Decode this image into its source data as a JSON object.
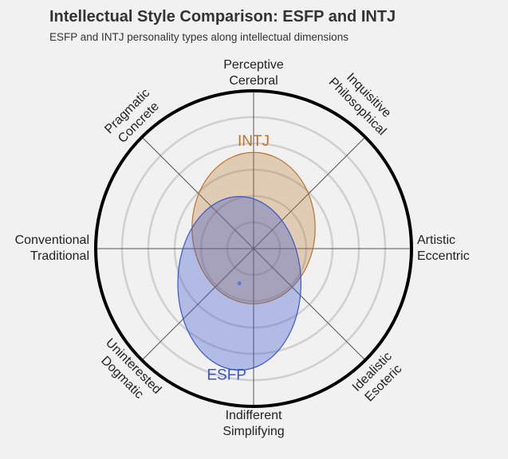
{
  "header": {
    "title": "Intellectual Style Comparison: ESFP and INTJ",
    "subtitle": "ESFP and INTJ personality types along intellectual dimensions"
  },
  "colors": {
    "background": "#f1f1f1",
    "intj": "#b8732a",
    "esfp": "#3a55c9"
  },
  "chart_data": {
    "type": "scatter",
    "grid": true,
    "rings": 5,
    "axes": [
      {
        "name": "vertical",
        "positive": [
          "Perceptive",
          "Cerebral"
        ],
        "negative": [
          "Indifferent",
          "Simplifying"
        ]
      },
      {
        "name": "horizontal",
        "positive": [
          "Artistic",
          "Eccentric"
        ],
        "negative": [
          "Conventional",
          "Traditional"
        ]
      },
      {
        "name": "diagonal-right",
        "positive": [
          "Inquisitive",
          "Philosophical"
        ],
        "negative": [
          "Uninterested",
          "Dogmatic"
        ]
      },
      {
        "name": "diagonal-left",
        "positive": [
          "Pragmatic",
          "Concrete"
        ],
        "negative": [
          "Idealistic",
          "Esoteric"
        ]
      }
    ],
    "series": [
      {
        "name": "INTJ",
        "x": 0.0,
        "y": 0.13,
        "rx": 0.39,
        "ry": 0.48
      },
      {
        "name": "ESFP",
        "x": -0.09,
        "y": -0.22,
        "rx": 0.39,
        "ry": 0.55,
        "point": true
      }
    ]
  }
}
